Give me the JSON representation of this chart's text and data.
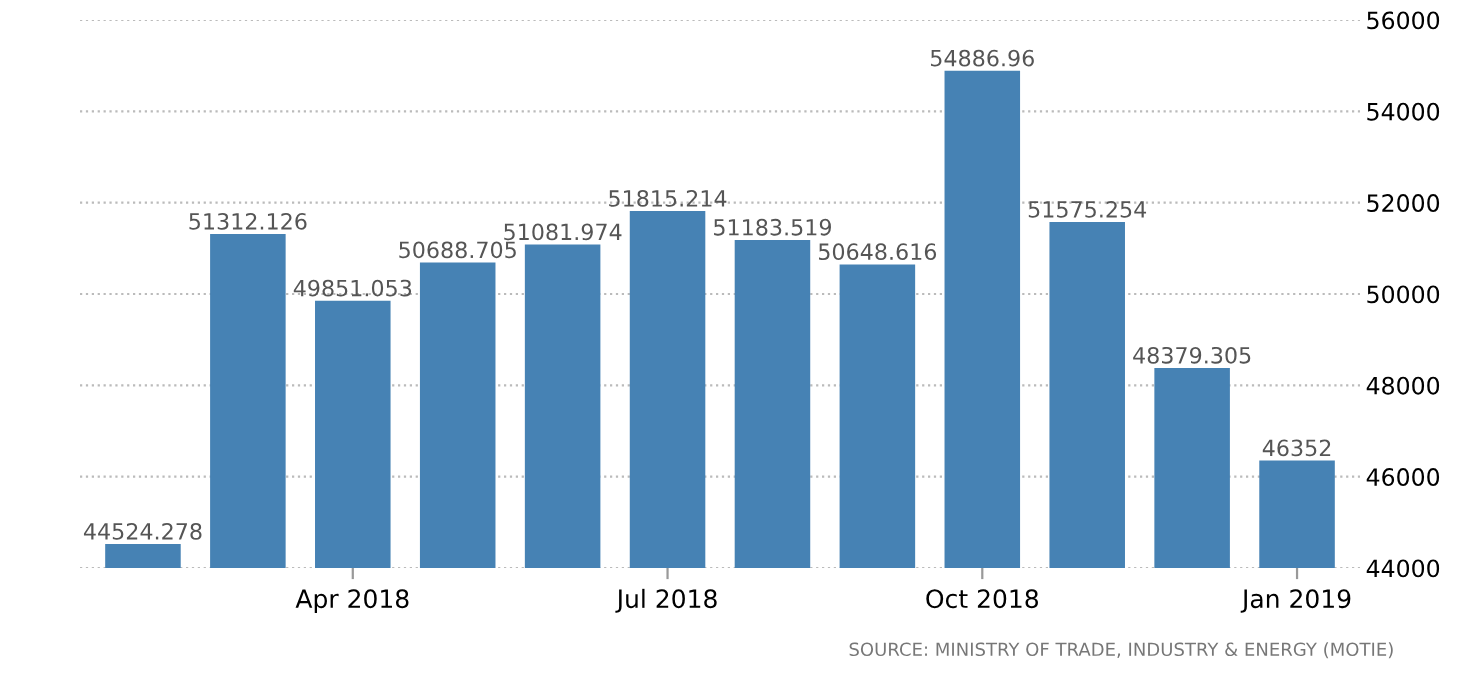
{
  "chart_data": {
    "type": "bar",
    "categories": [
      null,
      null,
      "Apr 2018",
      null,
      null,
      "Jul 2018",
      null,
      null,
      "Oct 2018",
      null,
      null,
      "Jan 2019"
    ],
    "values": [
      44524.278,
      51312.126,
      49851.053,
      50688.705,
      51081.974,
      51815.214,
      51183.519,
      50648.616,
      54886.96,
      51575.254,
      48379.305,
      46352
    ],
    "color": "#4682b4",
    "ylim": [
      44000,
      56000
    ],
    "yticks": [
      44000,
      46000,
      48000,
      50000,
      52000,
      54000,
      56000
    ],
    "grid": "y",
    "data_labels": true,
    "annotations": [
      "SOURCE: MINISTRY OF TRADE, INDUSTRY & ENERGY (MOTIE)"
    ]
  }
}
